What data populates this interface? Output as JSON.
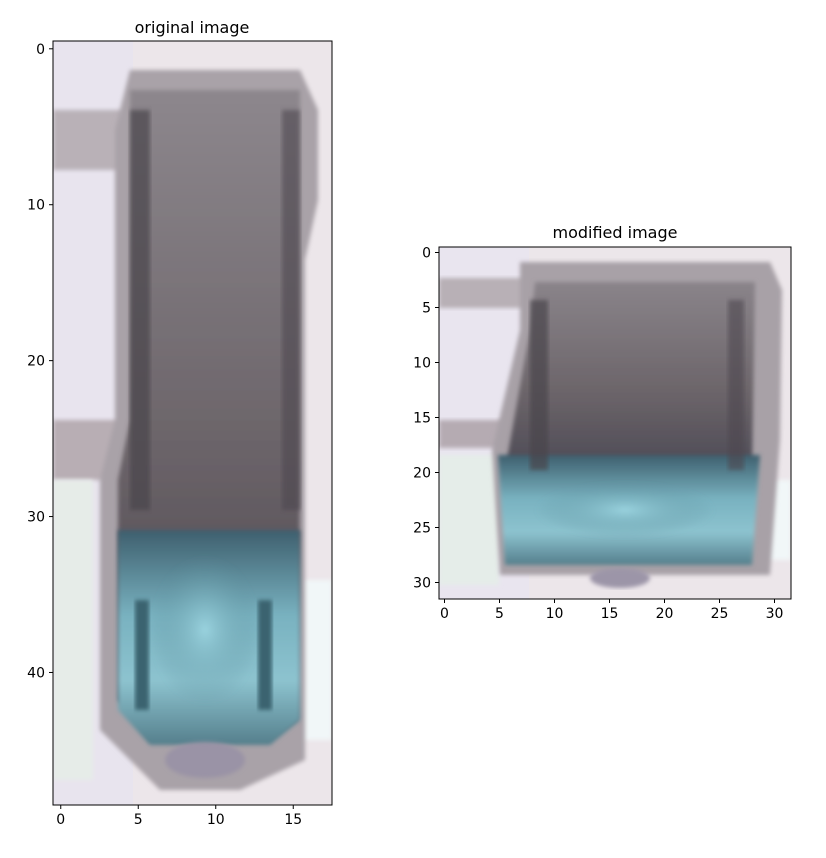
{
  "chart_data": [
    {
      "type": "heatmap",
      "title": "original image",
      "xlabel": "",
      "ylabel": "",
      "image_width": 18,
      "image_height": 49,
      "xlim": [
        -0.5,
        17.5
      ],
      "ylim": [
        48.5,
        -0.5
      ],
      "x_ticks": [
        0,
        5,
        10,
        15
      ],
      "y_ticks": [
        0,
        10,
        20,
        30,
        40
      ],
      "grid": false,
      "content": "low-resolution photo of a shoe or bottle: gray body on a light background with a teal-blue patterned band near the bottom"
    },
    {
      "type": "heatmap",
      "title": "modified image",
      "xlabel": "",
      "ylabel": "",
      "image_width": 32,
      "image_height": 32,
      "xlim": [
        -0.5,
        31.5
      ],
      "ylim": [
        31.5,
        -0.5
      ],
      "x_ticks": [
        0,
        5,
        10,
        15,
        20,
        25,
        30
      ],
      "y_ticks": [
        0,
        5,
        10,
        15,
        20,
        25,
        30
      ],
      "grid": false,
      "content": "the same object stretched horizontally into a square 32x32 image"
    }
  ]
}
